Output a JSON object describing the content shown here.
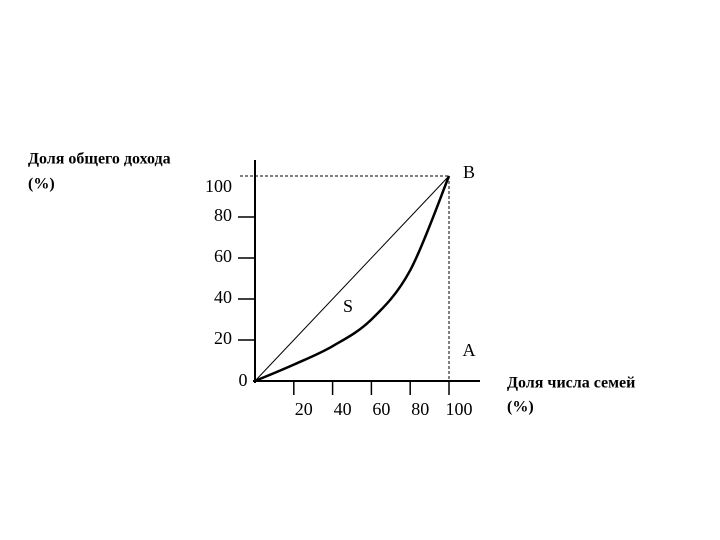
{
  "chart_data": {
    "type": "line",
    "y_label": [
      "Доля общего дохода",
      "(%)"
    ],
    "x_label": [
      "Доля числа семей",
      "(%)"
    ],
    "origin_label": "0",
    "point_labels": [
      "B",
      "S",
      "A"
    ],
    "xlim": [
      0,
      100
    ],
    "ylim": [
      0,
      100
    ],
    "xticks": [
      20,
      40,
      60,
      80,
      100
    ],
    "yticks": [
      20,
      40,
      60,
      80,
      100
    ],
    "series": [
      {
        "color": "#000000",
        "x": [
          0,
          100
        ],
        "values": [
          0,
          100
        ]
      },
      {
        "color": "#000000",
        "x": [
          0,
          20,
          40,
          60,
          80,
          100
        ],
        "values": [
          0,
          8,
          17,
          30,
          54,
          100
        ]
      }
    ]
  }
}
